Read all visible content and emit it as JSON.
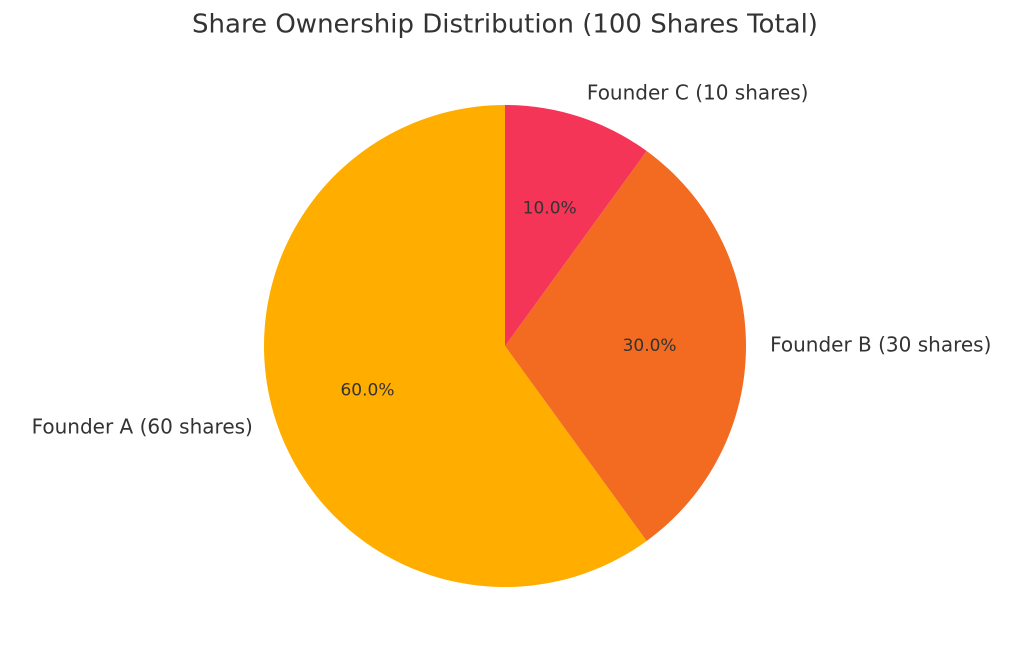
{
  "chart_data": {
    "type": "pie",
    "title": "Share Ownership Distribution (100 Shares Total)",
    "categories": [
      "Founder A (60 shares)",
      "Founder B (30 shares)",
      "Founder C (10 shares)"
    ],
    "values": [
      60,
      30,
      10
    ],
    "value_labels": [
      "60.0%",
      "30.0%",
      "10.0%"
    ],
    "colors": [
      "#ffae00",
      "#f26b21",
      "#f43558"
    ]
  }
}
